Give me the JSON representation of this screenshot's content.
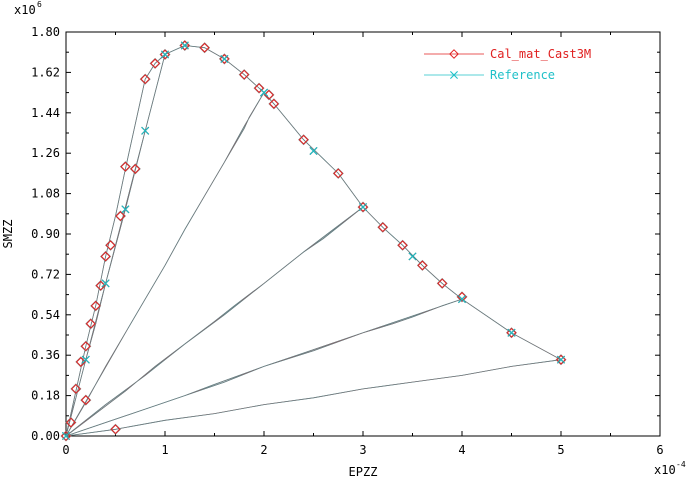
{
  "chart_data": {
    "type": "line",
    "xlabel": "EPZZ",
    "ylabel": "SMZZ",
    "x_multiplier": "x10",
    "x_multiplier_exp": "-4",
    "y_multiplier": "x10",
    "y_multiplier_exp": "6",
    "xlim": [
      0,
      6
    ],
    "ylim": [
      0,
      1.8
    ],
    "x_ticks": [
      "0",
      "1",
      "2",
      "3",
      "4",
      "5",
      "6"
    ],
    "x_tick_values": [
      0,
      1,
      2,
      3,
      4,
      5,
      6
    ],
    "y_ticks": [
      "0.00",
      "0.18",
      "0.36",
      "0.54",
      "0.72",
      "0.90",
      "1.08",
      "1.26",
      "1.44",
      "1.62",
      "1.80"
    ],
    "y_tick_values": [
      0,
      0.18,
      0.36,
      0.54,
      0.72,
      0.9,
      1.08,
      1.26,
      1.44,
      1.62,
      1.8
    ],
    "grid": false,
    "legend_position": "top-right",
    "series": [
      {
        "name": "Cal_mat_Cast3M",
        "color": "#e02020",
        "marker": "diamond",
        "x": [
          0,
          0.2,
          0.5,
          0.1,
          0.4,
          0.35,
          0.45,
          0.2,
          0.05,
          0.3,
          0.15,
          0.6,
          0.25,
          0.55,
          0.7,
          0.8,
          0.9,
          1.0,
          1.2,
          1.4,
          1.6,
          1.8,
          1.95,
          2.05,
          2.1,
          2.4,
          2.75,
          3.0,
          3.2,
          3.4,
          3.6,
          3.8,
          4.0,
          4.5,
          5.0
        ],
        "y": [
          0,
          0.4,
          0.03,
          0.21,
          0.8,
          0.67,
          0.85,
          0.16,
          0.06,
          0.58,
          0.33,
          1.2,
          0.5,
          0.98,
          1.19,
          1.59,
          1.66,
          1.7,
          1.74,
          1.73,
          1.68,
          1.61,
          1.55,
          1.52,
          1.48,
          1.32,
          1.17,
          1.02,
          0.93,
          0.85,
          0.76,
          0.68,
          0.62,
          0.46,
          0.34
        ]
      },
      {
        "name": "Reference",
        "color": "#20c0c8",
        "marker": "x",
        "x": [
          0,
          0.2,
          0.4,
          0.6,
          0.8,
          1.0,
          1.2,
          1.6,
          2.0,
          2.5,
          3.0,
          3.5,
          4.0,
          4.5,
          5.0
        ],
        "y": [
          0,
          0.34,
          0.68,
          1.01,
          1.36,
          1.7,
          1.74,
          1.68,
          1.53,
          1.27,
          1.02,
          0.8,
          0.61,
          0.46,
          0.34
        ]
      }
    ],
    "loading_paths": [
      {
        "x": [
          0,
          0.2,
          0.3,
          0.4,
          0.5,
          0.6,
          0.7,
          0.8,
          0.9,
          1.0
        ],
        "y": [
          0,
          0.4,
          0.58,
          0.8,
          0.98,
          1.19,
          1.39,
          1.59,
          1.66,
          1.7
        ]
      },
      {
        "x": [
          0,
          0.2,
          0.4,
          0.6,
          0.8,
          1.0,
          0.9,
          0.8,
          0.7,
          0.6,
          0.5,
          0.4,
          0.3,
          0.2,
          0.1,
          0.05,
          0
        ],
        "y": [
          0,
          0.34,
          0.68,
          1.01,
          1.36,
          1.7,
          1.53,
          1.36,
          1.19,
          1.02,
          0.85,
          0.68,
          0.5,
          0.34,
          0.17,
          0.09,
          0
        ]
      },
      {
        "x": [
          0,
          0.6,
          0.8,
          1.0,
          1.2,
          1.4,
          1.6,
          1.8,
          1.85,
          2.0,
          1.8,
          1.6,
          1.4,
          1.2,
          1.0,
          0.8,
          0.6,
          0.4,
          0.2,
          0
        ],
        "y": [
          0,
          0.46,
          0.61,
          0.76,
          0.92,
          1.07,
          1.22,
          1.37,
          1.42,
          1.53,
          1.38,
          1.22,
          1.07,
          0.92,
          0.76,
          0.61,
          0.46,
          0.31,
          0.15,
          0
        ]
      },
      {
        "x": [
          0,
          0.4,
          0.8,
          1.0,
          1.2,
          1.5,
          1.7,
          2.0,
          2.2,
          2.4,
          2.6,
          2.8,
          3.0,
          2.7,
          2.4,
          2.0,
          1.6,
          1.2,
          0.9,
          0.6,
          0.3,
          0
        ],
        "y": [
          0,
          0.14,
          0.27,
          0.34,
          0.41,
          0.51,
          0.58,
          0.68,
          0.75,
          0.82,
          0.88,
          0.95,
          1.02,
          0.92,
          0.82,
          0.68,
          0.54,
          0.41,
          0.31,
          0.2,
          0.1,
          0
        ]
      },
      {
        "x": [
          0,
          0.8,
          1.2,
          1.5,
          2.0,
          2.4,
          2.6,
          3.0,
          3.3,
          3.5,
          3.8,
          4.0,
          3.6,
          3.0,
          2.5,
          2.0,
          1.6,
          1.2,
          0.8,
          0.4,
          0
        ],
        "y": [
          0,
          0.12,
          0.18,
          0.23,
          0.31,
          0.37,
          0.4,
          0.46,
          0.5,
          0.53,
          0.58,
          0.61,
          0.55,
          0.46,
          0.38,
          0.31,
          0.24,
          0.18,
          0.12,
          0.06,
          0
        ]
      },
      {
        "x": [
          0,
          0.5,
          1.0,
          1.5,
          2.0,
          2.5,
          3.0,
          3.5,
          4.0,
          4.5,
          5.0
        ],
        "y": [
          0,
          0.03,
          0.07,
          0.1,
          0.14,
          0.17,
          0.21,
          0.24,
          0.27,
          0.31,
          0.34
        ]
      },
      {
        "x": [
          1.0,
          1.2,
          1.4,
          1.6,
          1.8,
          2.0,
          2.1,
          2.4,
          2.75,
          3.0,
          3.2,
          3.4,
          3.6,
          3.8,
          4.0,
          4.5,
          5.0
        ],
        "y": [
          1.7,
          1.74,
          1.73,
          1.68,
          1.61,
          1.53,
          1.48,
          1.32,
          1.17,
          1.02,
          0.93,
          0.85,
          0.76,
          0.68,
          0.61,
          0.46,
          0.34
        ]
      }
    ]
  }
}
